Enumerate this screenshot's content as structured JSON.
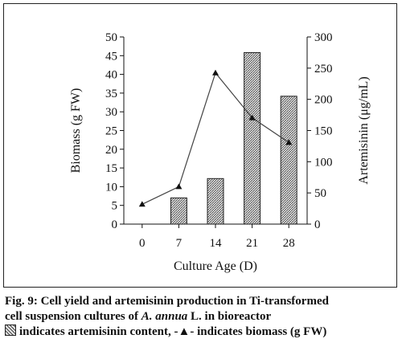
{
  "chart_data": {
    "type": "bar",
    "categories": [
      "0",
      "7",
      "14",
      "21",
      "28"
    ],
    "xlabel": "Culture Age (D)",
    "series": [
      {
        "type": "bar",
        "axis": "right",
        "values": [
          null,
          42,
          73,
          275,
          205
        ]
      },
      {
        "type": "line",
        "axis": "left",
        "marker": "filled-triangle",
        "values": [
          5.3,
          10,
          40.4,
          28.4,
          21.8
        ]
      }
    ],
    "left_axis": {
      "label": "Biomass (g FW)",
      "ylim": [
        0,
        50
      ],
      "ticks": [
        "0",
        "5",
        "10",
        "15",
        "20",
        "25",
        "30",
        "35",
        "40",
        "45",
        "50"
      ]
    },
    "right_axis": {
      "label": "Artemisinin (μg/mL)",
      "ylim": [
        0,
        300
      ],
      "ticks": [
        "0",
        "50",
        "100",
        "150",
        "200",
        "250",
        "300"
      ]
    },
    "grid": false,
    "bar_fill": "#e6e6e6",
    "bar_hatch": "#444444",
    "line_color": "#444444"
  },
  "caption": {
    "line1": "Fig. 9: Cell yield and artemisinin production in Ti-transformed",
    "line2_before": "cell suspension cultures of ",
    "line2_italic": "A. annua",
    "line2_after": " L. in bioreactor",
    "legend_text": "indicates artemisinin content, -▲- indicates biomass (g FW)"
  }
}
